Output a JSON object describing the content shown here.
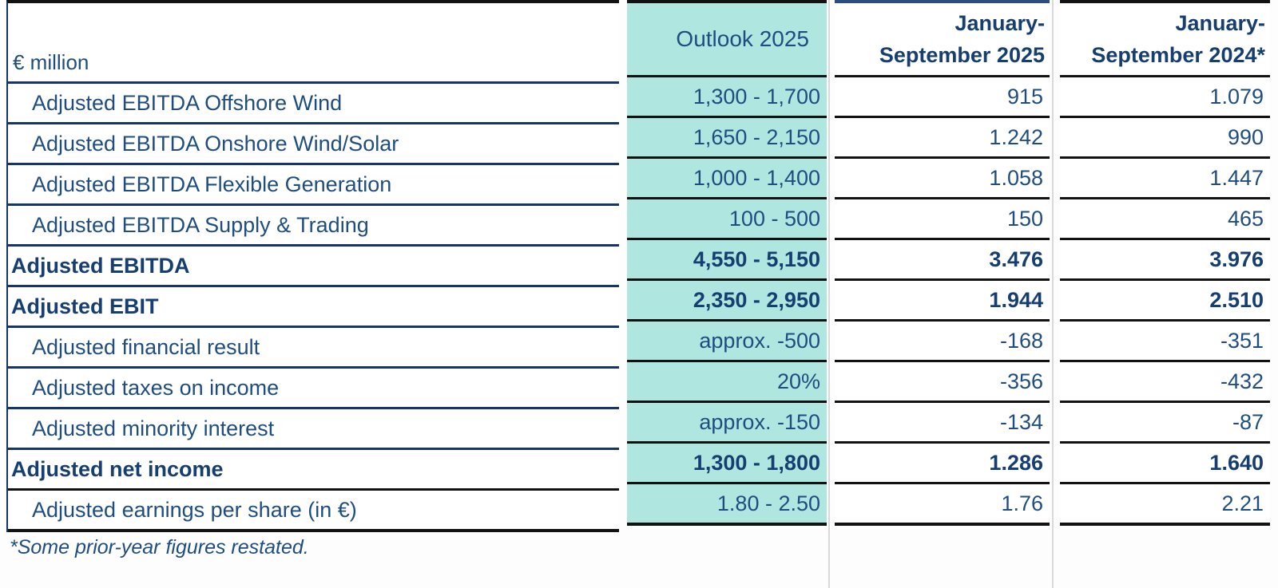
{
  "table": {
    "unit_label": "€ million",
    "columns": {
      "outlook": {
        "label": "Outlook 2025"
      },
      "p2025": {
        "line1": "January-",
        "line2": "September 2025"
      },
      "p2024": {
        "line1": "January-",
        "line2": "September 2024*"
      }
    },
    "rows": [
      {
        "label": "Adjusted EBITDA Offshore Wind",
        "bold": false,
        "outlook": "1,300 - 1,700",
        "p2025": "915",
        "p2024": "1.079"
      },
      {
        "label": "Adjusted EBITDA Onshore Wind/Solar",
        "bold": false,
        "outlook": "1,650 - 2,150",
        "p2025": "1.242",
        "p2024": "990"
      },
      {
        "label": "Adjusted EBITDA Flexible Generation",
        "bold": false,
        "outlook": "1,000 - 1,400",
        "p2025": "1.058",
        "p2024": "1.447"
      },
      {
        "label": "Adjusted EBITDA Supply & Trading",
        "bold": false,
        "outlook": "100 - 500",
        "p2025": "150",
        "p2024": "465"
      },
      {
        "label": "Adjusted EBITDA",
        "bold": true,
        "outlook": "4,550 - 5,150",
        "p2025": "3.476",
        "p2024": "3.976"
      },
      {
        "label": "Adjusted EBIT",
        "bold": true,
        "outlook": "2,350 - 2,950",
        "p2025": "1.944",
        "p2024": "2.510"
      },
      {
        "label": "Adjusted financial result",
        "bold": false,
        "outlook": "approx. -500",
        "p2025": "-168",
        "p2024": "-351"
      },
      {
        "label": "Adjusted taxes on income",
        "bold": false,
        "outlook": "20%",
        "p2025": "-356",
        "p2024": "-432"
      },
      {
        "label": "Adjusted minority interest",
        "bold": false,
        "outlook": "approx. -150",
        "p2025": "-134",
        "p2024": "-87"
      },
      {
        "label": "Adjusted net income",
        "bold": true,
        "outlook": "1,300 - 1,800",
        "p2025": "1.286",
        "p2024": "1.640"
      },
      {
        "label": "Adjusted earnings per share (in €)",
        "bold": false,
        "outlook": "1.80 - 2.50",
        "p2025": "1.76",
        "p2024": "2.21"
      }
    ],
    "footnote": "*Some prior-year figures restated."
  },
  "colors": {
    "highlight_teal": "#afe7e0",
    "text_navy": "#1f4d80",
    "text_navy_bold": "#163e70",
    "separator_navy": "#14346a",
    "separator_black": "#121212",
    "header_top_blue": "#2b4d80",
    "faint_gridline": "#d9d9d9"
  }
}
